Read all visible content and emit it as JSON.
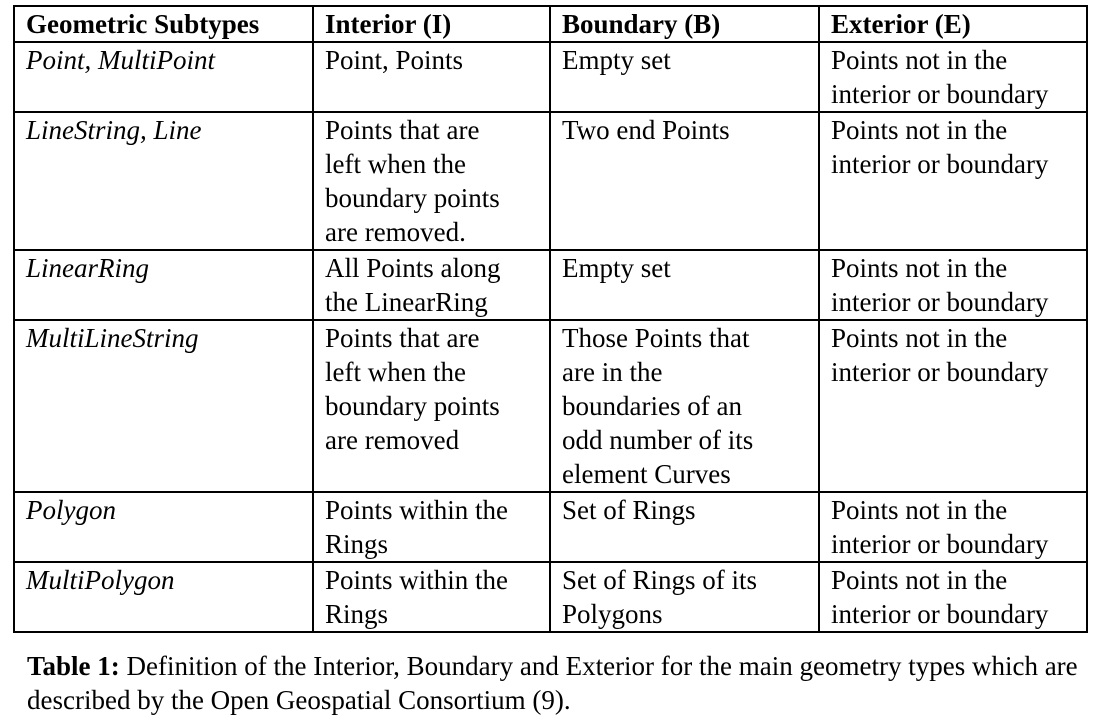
{
  "table": {
    "headers": [
      "Geometric Subtypes",
      "Interior (I)",
      "Boundary (B)",
      "Exterior (E)"
    ],
    "rows": [
      {
        "subtype": "Point, MultiPoint",
        "interior": "Point, Points",
        "boundary": "Empty set",
        "exterior": "Points not in the\ninterior or boundary"
      },
      {
        "subtype": "LineString, Line",
        "interior": "Points that are\nleft when the\nboundary points\nare removed.",
        "boundary": "Two end Points",
        "exterior": "Points not in the\ninterior or boundary"
      },
      {
        "subtype": "LinearRing",
        "interior": "All Points along\nthe LinearRing",
        "boundary": "Empty set",
        "exterior": "Points not in the\ninterior or boundary"
      },
      {
        "subtype": "MultiLineString",
        "interior": "Points that are\nleft when the\nboundary points\nare removed",
        "boundary": "Those Points that\nare in the\nboundaries of an\nodd number of its\nelement Curves",
        "exterior": "Points not in the\ninterior or boundary"
      },
      {
        "subtype": "Polygon",
        "interior": "Points within the\nRings",
        "boundary": "Set of Rings",
        "exterior": "Points not in the\ninterior or boundary"
      },
      {
        "subtype": "MultiPolygon",
        "interior": "Points within the\nRings",
        "boundary": "Set of Rings of its\nPolygons",
        "exterior": "Points not in the\ninterior or boundary"
      }
    ]
  },
  "caption": {
    "label": "Table 1:",
    "text": " Definition of the Interior, Boundary and Exterior for the main geometry types which are described by the Open Geospatial Consortium (9)."
  }
}
